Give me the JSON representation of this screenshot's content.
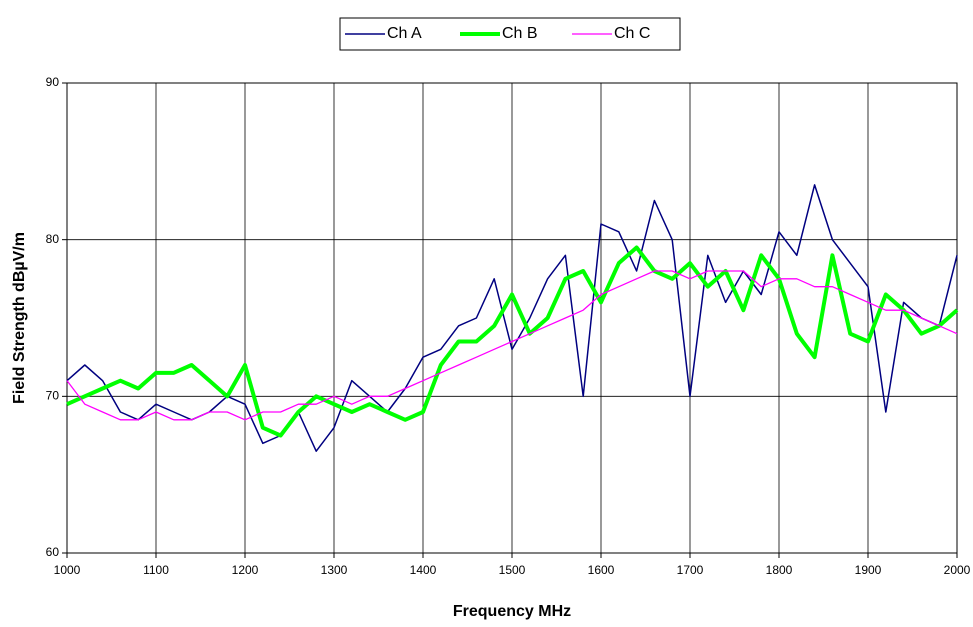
{
  "chart_data": {
    "type": "line",
    "x_label": "Frequency MHz",
    "y_label": "Field Strength dBµV/m",
    "x": [
      1000,
      1020,
      1040,
      1060,
      1080,
      1100,
      1120,
      1140,
      1160,
      1180,
      1200,
      1220,
      1240,
      1260,
      1280,
      1300,
      1320,
      1340,
      1360,
      1380,
      1400,
      1420,
      1440,
      1460,
      1480,
      1500,
      1520,
      1540,
      1560,
      1580,
      1600,
      1620,
      1640,
      1660,
      1680,
      1700,
      1720,
      1740,
      1760,
      1780,
      1800,
      1820,
      1840,
      1860,
      1880,
      1900,
      1920,
      1940,
      1960,
      1980,
      2000
    ],
    "series": [
      {
        "name": "Ch A",
        "color": "#000080",
        "width": 1.5,
        "values": [
          71,
          72,
          71,
          69,
          68.5,
          69.5,
          69,
          68.5,
          69,
          70,
          69.5,
          67,
          67.5,
          69,
          66.5,
          68,
          71,
          70,
          69,
          70.5,
          72.5,
          73,
          74.5,
          75,
          77.5,
          73,
          75,
          77.5,
          79,
          70,
          81,
          80.5,
          78,
          82.5,
          80,
          70,
          79,
          76,
          78,
          76.5,
          80.5,
          79,
          83.5,
          80,
          78.5,
          77,
          69,
          76,
          75,
          74.5,
          79
        ]
      },
      {
        "name": "Ch B",
        "color": "#00ff00",
        "width": 4,
        "values": [
          69.5,
          70,
          70.5,
          71,
          70.5,
          71.5,
          71.5,
          72,
          71,
          70,
          72,
          68,
          67.5,
          69,
          70,
          69.5,
          69,
          69.5,
          69,
          68.5,
          69,
          72,
          73.5,
          73.5,
          74.5,
          76.5,
          74,
          75,
          77.5,
          78,
          76,
          78.5,
          79.5,
          78,
          77.5,
          78.5,
          77,
          78,
          75.5,
          79,
          77.5,
          74,
          72.5,
          79,
          74,
          73.5,
          76.5,
          75.5,
          74,
          74.5,
          75.5
        ]
      },
      {
        "name": "Ch C",
        "color": "#ff00ff",
        "width": 1.3,
        "values": [
          71,
          69.5,
          69,
          68.5,
          68.5,
          69,
          68.5,
          68.5,
          69,
          69,
          68.5,
          69,
          69,
          69.5,
          69.5,
          70,
          69.5,
          70,
          70,
          70.5,
          71,
          71.5,
          72,
          72.5,
          73,
          73.5,
          74,
          74.5,
          75,
          75.5,
          76.5,
          77,
          77.5,
          78,
          78,
          77.5,
          78,
          78,
          78,
          77,
          77.5,
          77.5,
          77,
          77,
          76.5,
          76,
          75.5,
          75.5,
          75,
          74.5,
          74
        ]
      }
    ],
    "xlim": [
      1000,
      2000
    ],
    "xticks": [
      1000,
      1100,
      1200,
      1300,
      1400,
      1500,
      1600,
      1700,
      1800,
      1900,
      2000
    ],
    "ylim": [
      60,
      90
    ],
    "yticks": [
      60,
      70,
      80,
      90
    ],
    "grid": true
  }
}
